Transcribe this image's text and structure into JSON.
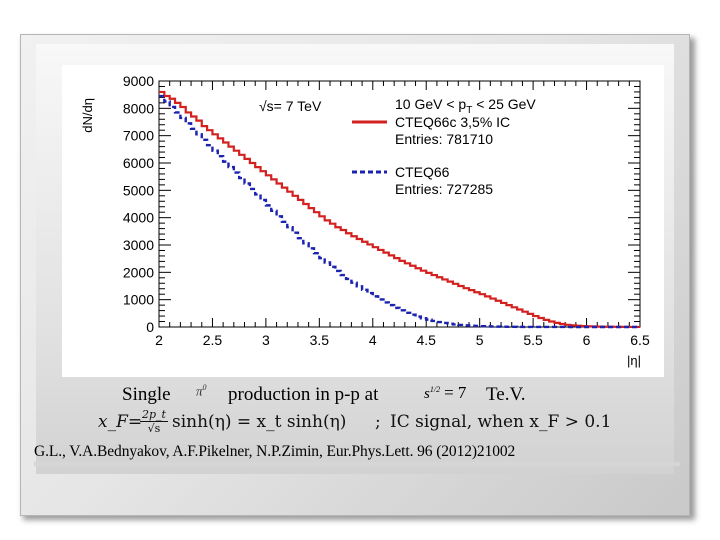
{
  "chart_data": {
    "type": "line",
    "ylabel": "dN/dη",
    "xlabel": "|η|",
    "xlim": [
      2,
      6.5
    ],
    "ylim": [
      0,
      9000
    ],
    "x_ticks": [
      "2",
      "2.5",
      "3",
      "3.5",
      "4",
      "4.5",
      "5",
      "5.5",
      "6",
      "6.5"
    ],
    "y_ticks": [
      "0",
      "1000",
      "2000",
      "3000",
      "4000",
      "5000",
      "6000",
      "7000",
      "8000",
      "9000"
    ],
    "energy_label": "√s= 7 TeV",
    "pt_range_label": "10 GeV < p",
    "pt_sub": "T",
    "pt_range_tail": " < 25 GeV",
    "grid": false,
    "legend_position": "top-right",
    "series": [
      {
        "name": "CTEQ66c 3,5% IC",
        "entries_label": "Entries: 781710",
        "color": "#d2211f",
        "style": "solid",
        "x": [
          2.0,
          2.05,
          2.1,
          2.15,
          2.2,
          2.25,
          2.3,
          2.35,
          2.4,
          2.45,
          2.5,
          2.55,
          2.6,
          2.65,
          2.7,
          2.75,
          2.8,
          2.85,
          2.9,
          2.95,
          3.0,
          3.05,
          3.1,
          3.15,
          3.2,
          3.25,
          3.3,
          3.35,
          3.4,
          3.45,
          3.5,
          3.55,
          3.6,
          3.65,
          3.7,
          3.75,
          3.8,
          3.85,
          3.9,
          3.95,
          4.0,
          4.05,
          4.1,
          4.15,
          4.2,
          4.25,
          4.3,
          4.35,
          4.4,
          4.45,
          4.5,
          4.55,
          4.6,
          4.65,
          4.7,
          4.75,
          4.8,
          4.85,
          4.9,
          4.95,
          5.0,
          5.05,
          5.1,
          5.15,
          5.2,
          5.25,
          5.3,
          5.35,
          5.4,
          5.45,
          5.5,
          5.55,
          5.6,
          5.65,
          5.7,
          5.75,
          5.8,
          5.85,
          5.9,
          5.95,
          6.0,
          6.05,
          6.1,
          6.15,
          6.2,
          6.25,
          6.3,
          6.35,
          6.4,
          6.45
        ],
        "values": [
          8600,
          8450,
          8350,
          8200,
          8050,
          7850,
          7700,
          7550,
          7350,
          7200,
          7050,
          6900,
          6750,
          6600,
          6450,
          6300,
          6150,
          6000,
          5850,
          5700,
          5550,
          5400,
          5250,
          5100,
          4950,
          4800,
          4650,
          4500,
          4350,
          4200,
          4050,
          3900,
          3780,
          3650,
          3550,
          3430,
          3320,
          3220,
          3120,
          3020,
          2920,
          2820,
          2720,
          2620,
          2520,
          2420,
          2330,
          2240,
          2150,
          2060,
          1980,
          1900,
          1820,
          1740,
          1660,
          1580,
          1500,
          1420,
          1350,
          1270,
          1200,
          1120,
          1040,
          960,
          880,
          800,
          720,
          640,
          560,
          480,
          400,
          330,
          260,
          200,
          150,
          110,
          80,
          60,
          45,
          35,
          25,
          20,
          15,
          10,
          8,
          6,
          5,
          4,
          3,
          2
        ]
      },
      {
        "name": "CTEQ66",
        "entries_label": "Entries: 727285",
        "color": "#1c23b0",
        "style": "dashed",
        "x": [
          2.0,
          2.05,
          2.1,
          2.15,
          2.2,
          2.25,
          2.3,
          2.35,
          2.4,
          2.45,
          2.5,
          2.55,
          2.6,
          2.65,
          2.7,
          2.75,
          2.8,
          2.85,
          2.9,
          2.95,
          3.0,
          3.05,
          3.1,
          3.15,
          3.2,
          3.25,
          3.3,
          3.35,
          3.4,
          3.45,
          3.5,
          3.55,
          3.6,
          3.65,
          3.7,
          3.75,
          3.8,
          3.85,
          3.9,
          3.95,
          4.0,
          4.05,
          4.1,
          4.15,
          4.2,
          4.25,
          4.3,
          4.35,
          4.4,
          4.45,
          4.5,
          4.55,
          4.6,
          4.65,
          4.7,
          4.75,
          4.8,
          4.85,
          4.9,
          4.95,
          5.0,
          5.05,
          5.1,
          5.15,
          5.2,
          5.25,
          5.3,
          5.35,
          5.4,
          5.45,
          5.5,
          5.55,
          5.6,
          5.65,
          5.7,
          5.75,
          5.8,
          5.85,
          5.9,
          5.95,
          6.0,
          6.05,
          6.1,
          6.15,
          6.2,
          6.25,
          6.3,
          6.35,
          6.4,
          6.45
        ],
        "values": [
          8450,
          8250,
          8050,
          7850,
          7650,
          7450,
          7250,
          7050,
          6850,
          6650,
          6450,
          6250,
          6050,
          5850,
          5650,
          5450,
          5250,
          5050,
          4850,
          4650,
          4450,
          4250,
          4050,
          3850,
          3650,
          3450,
          3250,
          3060,
          2880,
          2700,
          2520,
          2360,
          2200,
          2050,
          1900,
          1760,
          1620,
          1490,
          1360,
          1240,
          1120,
          1010,
          900,
          800,
          700,
          610,
          520,
          450,
          380,
          320,
          270,
          220,
          180,
          150,
          120,
          95,
          75,
          60,
          48,
          38,
          30,
          24,
          18,
          14,
          10,
          8,
          6,
          5,
          4,
          3,
          2,
          2,
          1,
          1,
          1,
          1,
          1,
          0,
          0,
          0,
          0,
          0,
          0,
          0,
          0,
          0,
          0,
          0,
          0,
          0
        ]
      }
    ]
  },
  "caption": {
    "single": "Single",
    "pi0": "π",
    "pi0_sup": "0",
    "production": "production in p-p at",
    "sqrt_s": "s",
    "sqrt_s_sup": "1/2",
    "eq": "= 7",
    "tev": "Te.V."
  },
  "formula": {
    "xf_eq": "x_F=",
    "frac_num": "2p_t",
    "frac_den": "√s",
    "sinh": "sinh(η) = x_t sinh(η)",
    "sep": ";",
    "ic_text": "IC signal, when x_F > 0.1"
  },
  "reference": "G.L., V.A.Bednyakov, A.F.Pikelner, N.P.Zimin, Eur.Phys.Lett. 96 (2012)21002"
}
